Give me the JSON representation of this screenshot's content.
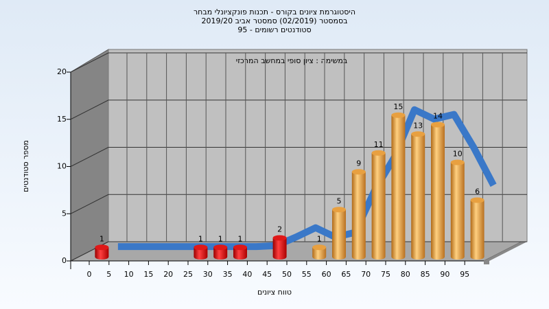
{
  "chart_data": {
    "type": "bar3d",
    "title": [
      "היסטוגרמת ציונים בקורס - תכנות פונקציונלי מבחר",
      "בסמסטר  (02/2019)  סמסטר אביב 2019/20",
      "סטודנטים רשומים - 95"
    ],
    "annotation": "במשימה : ציון סופי במחשב המרכזי",
    "xlabel": "טווח ציונים",
    "ylabel": "מספר סטודנטים",
    "categories": [
      "0",
      "5",
      "10",
      "15",
      "20",
      "25",
      "30",
      "35",
      "40",
      "45",
      "50",
      "55",
      "60",
      "65",
      "70",
      "75",
      "80",
      "85",
      "90",
      "95"
    ],
    "values": [
      1,
      0,
      0,
      0,
      0,
      1,
      1,
      1,
      0,
      2,
      0,
      1,
      5,
      9,
      11,
      15,
      13,
      14,
      10,
      6
    ],
    "colors": [
      "#e01818",
      "#e01818",
      "#e01818",
      "#e01818",
      "#e01818",
      "#e01818",
      "#e01818",
      "#e01818",
      "#e01818",
      "#e01818",
      "#e01818",
      "#e8a040",
      "#e8a040",
      "#e8a040",
      "#e8a040",
      "#e8a040",
      "#e8a040",
      "#e8a040",
      "#e8a040",
      "#e8a040"
    ],
    "trend": {
      "color": "#3a78c8",
      "values": [
        0.5,
        0.5,
        0.5,
        0.5,
        0.5,
        0.5,
        0.5,
        0.5,
        0.6,
        1.5,
        2.5,
        1.5,
        2,
        6.5,
        10,
        15,
        14,
        14.5,
        11,
        7
      ]
    },
    "ylim": [
      0,
      20
    ],
    "yticks": [
      0,
      5,
      10,
      15,
      20
    ],
    "grid": true
  }
}
